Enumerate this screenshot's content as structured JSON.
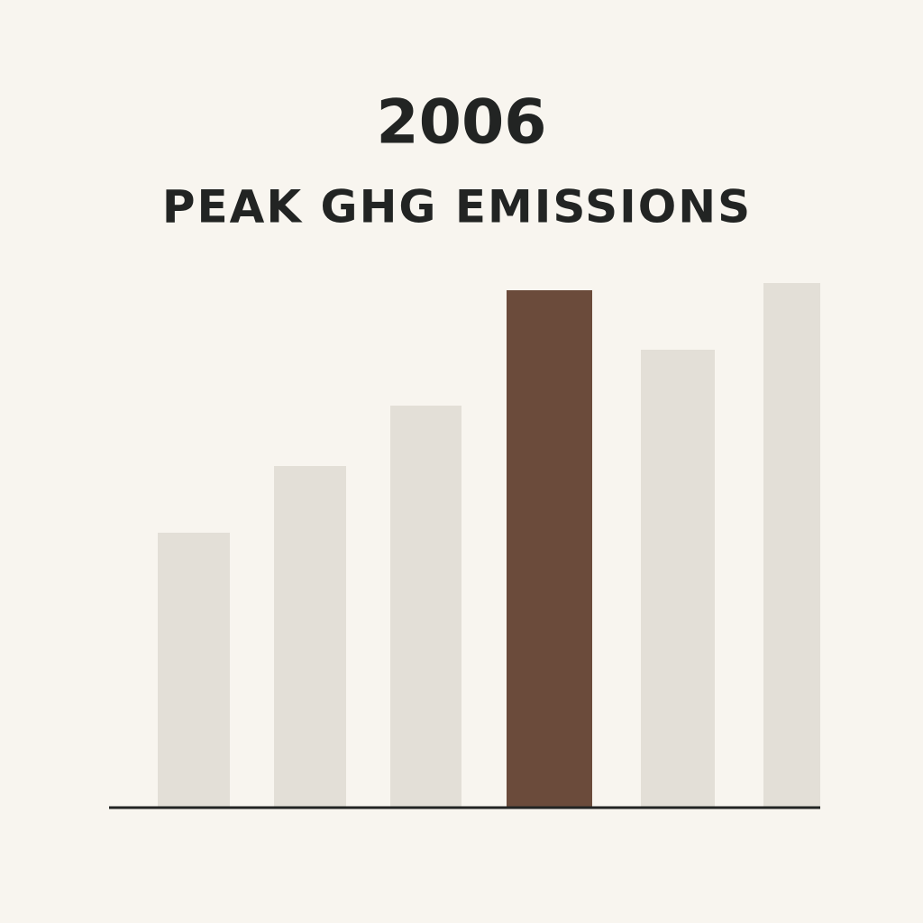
{
  "chart_data": {
    "type": "bar",
    "title": "2006",
    "subtitle": "PEAK GHG EMISSIONS",
    "categories": [
      null,
      null,
      null,
      null,
      null,
      null
    ],
    "values": [
      304,
      378,
      445,
      573,
      507,
      581
    ],
    "colors": [
      "#e3dfd7",
      "#e3dfd7",
      "#e3dfd7",
      "#6b4b3b",
      "#e3dfd7",
      "#e3dfd7"
    ],
    "ylim": [
      0,
      600
    ]
  }
}
